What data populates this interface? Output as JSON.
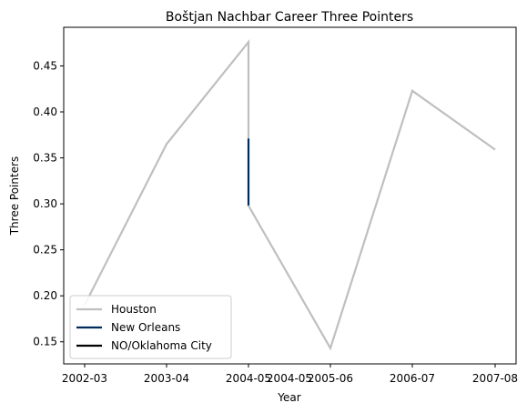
{
  "chart_data": {
    "type": "line",
    "title": "Boštjan Nachbar Career Three Pointers",
    "xlabel": "Year",
    "ylabel": "Three Pointers",
    "x_categories": [
      "2002-03",
      "2003-04",
      "2004-05",
      "2004-05",
      "2005-06",
      "2006-07",
      "2007-08"
    ],
    "y_ticks": [
      0.15,
      0.2,
      0.25,
      0.3,
      0.35,
      0.4,
      0.45
    ],
    "ylim": [
      0.126,
      0.492
    ],
    "grid": false,
    "legend_position": "lower-left",
    "series": [
      {
        "name": "Houston",
        "color": "#bfbfbf",
        "points": [
          {
            "x": "2002-03",
            "y": 0.19
          },
          {
            "x": "2003-04",
            "y": 0.365
          },
          {
            "x": "2004-05",
            "y": 0.476
          },
          {
            "x": "2004-05",
            "y": 0.371
          }
        ]
      },
      {
        "name": "New Orleans",
        "color": "#002b5c",
        "points": [
          {
            "x": "2004-05",
            "y": 0.371
          },
          {
            "x": "2004-05",
            "y": 0.298
          }
        ]
      },
      {
        "name": "Houston",
        "color": "#bfbfbf",
        "points": [
          {
            "x": "2004-05",
            "y": 0.298
          },
          {
            "x": "2005-06",
            "y": 0.143
          },
          {
            "x": "2006-07",
            "y": 0.423
          },
          {
            "x": "2007-08",
            "y": 0.359
          }
        ]
      }
    ],
    "legend": [
      {
        "label": "Houston",
        "color": "#bfbfbf"
      },
      {
        "label": "New Orleans",
        "color": "#002b5c"
      },
      {
        "label": "NO/Oklahoma City",
        "color": "#000000"
      }
    ]
  }
}
